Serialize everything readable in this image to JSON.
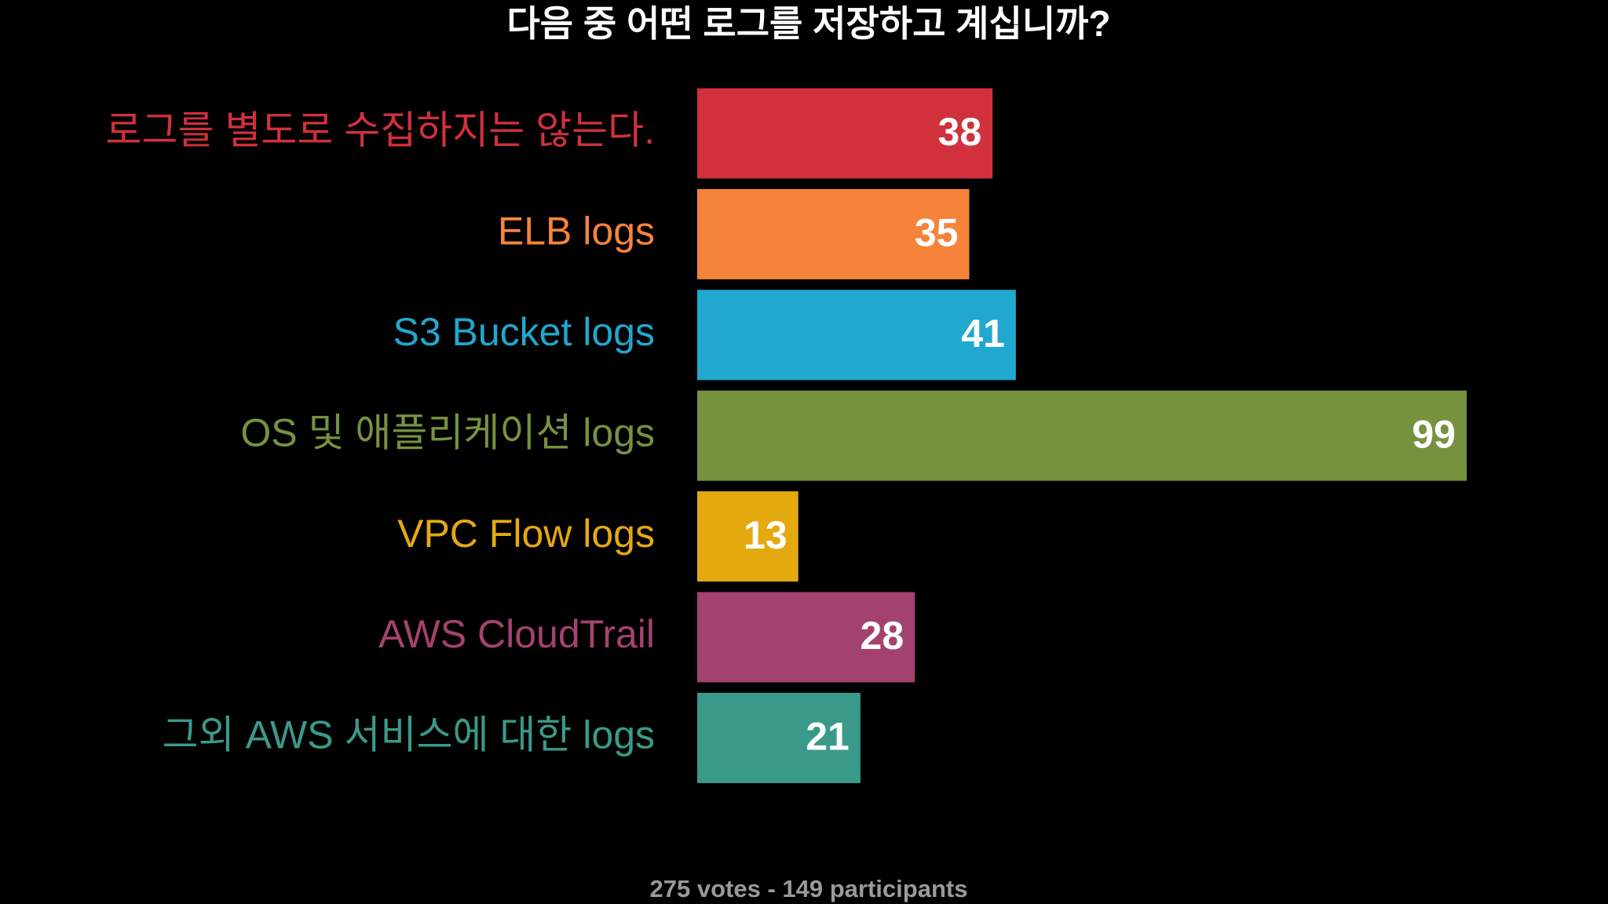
{
  "chart_data": {
    "type": "hbar",
    "title": "다음 중 어떤 로그를 저장하고 계십니까?",
    "categories": [
      "로그를 별도로 수집하지는 않는다.",
      "ELB logs",
      "S3 Bucket logs",
      "OS 및 애플리케이션 logs",
      "VPC Flow logs",
      "AWS CloudTrail",
      "그외 AWS 서비스에 대한 logs"
    ],
    "values": [
      38,
      35,
      41,
      99,
      13,
      28,
      21
    ],
    "colors": [
      "#d0313c",
      "#f5843a",
      "#20a8cf",
      "#76923f",
      "#e5a910",
      "#a4426f",
      "#3a9a8a"
    ],
    "footer": "275 votes - 149 participants"
  }
}
